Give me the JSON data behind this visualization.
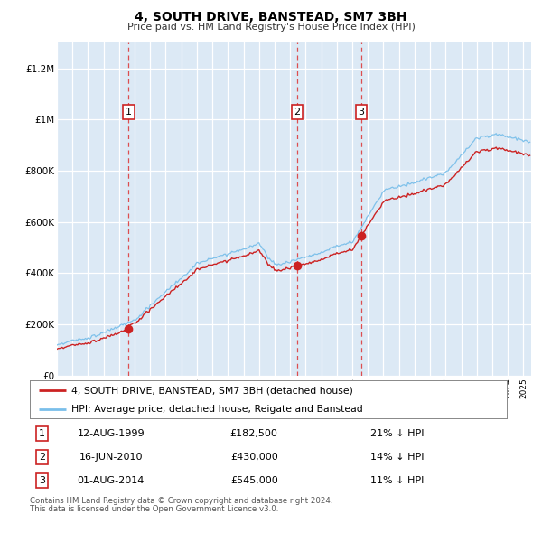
{
  "title": "4, SOUTH DRIVE, BANSTEAD, SM7 3BH",
  "subtitle": "Price paid vs. HM Land Registry's House Price Index (HPI)",
  "xlim": [
    1995.0,
    2025.5
  ],
  "ylim": [
    0,
    1300000
  ],
  "yticks": [
    0,
    200000,
    400000,
    600000,
    800000,
    1000000,
    1200000
  ],
  "ytick_labels": [
    "£0",
    "£200K",
    "£400K",
    "£600K",
    "£800K",
    "£1M",
    "£1.2M"
  ],
  "background_color": "#dce9f5",
  "plot_bg_color": "#dce9f5",
  "hpi_color": "#7abfea",
  "price_color": "#cc2222",
  "sale_marker_color": "#cc2222",
  "vline_color": "#dd3333",
  "legend_label_price": "4, SOUTH DRIVE, BANSTEAD, SM7 3BH (detached house)",
  "legend_label_hpi": "HPI: Average price, detached house, Reigate and Banstead",
  "sales": [
    {
      "num": 1,
      "date_x": 1999.61,
      "price": 182500,
      "label_date": "12-AUG-1999",
      "label_price": "£182,500",
      "label_hpi": "21% ↓ HPI"
    },
    {
      "num": 2,
      "date_x": 2010.46,
      "price": 430000,
      "label_date": "16-JUN-2010",
      "label_price": "£430,000",
      "label_hpi": "14% ↓ HPI"
    },
    {
      "num": 3,
      "date_x": 2014.58,
      "price": 545000,
      "label_date": "01-AUG-2014",
      "label_price": "£545,000",
      "label_hpi": "11% ↓ HPI"
    }
  ],
  "footer_line1": "Contains HM Land Registry data © Crown copyright and database right 2024.",
  "footer_line2": "This data is licensed under the Open Government Licence v3.0."
}
